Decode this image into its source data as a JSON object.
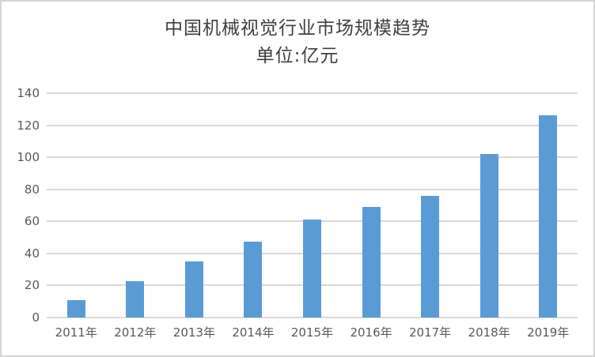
{
  "chart_data": {
    "type": "bar",
    "title": "中国机械视觉行业市场规模趋势",
    "subtitle": "单位:亿元",
    "categories": [
      "2011年",
      "2012年",
      "2013年",
      "2014年",
      "2015年",
      "2016年",
      "2017年",
      "2018年",
      "2019年"
    ],
    "values": [
      11,
      22.5,
      35,
      47.5,
      61,
      69,
      76,
      102,
      126
    ],
    "yticks": [
      0,
      20,
      40,
      60,
      80,
      100,
      120,
      140
    ],
    "ylim": [
      0,
      140
    ],
    "xlabel": "",
    "ylabel": "",
    "grid": true,
    "legend": "none",
    "bar_color": "#5b9bd5",
    "gridline_color": "#d9d9d9",
    "axis_label_color": "#595959",
    "title_color": "#3f3f3f",
    "frame_border_color": "#d4d4d4",
    "background_color": "#ffffff"
  }
}
